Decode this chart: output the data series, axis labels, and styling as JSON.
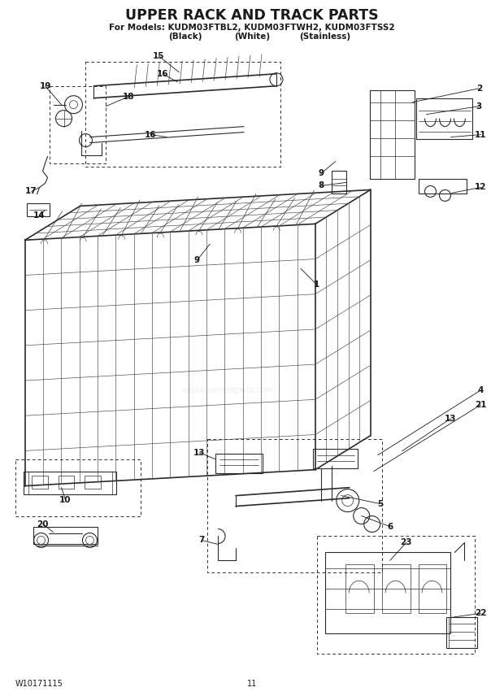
{
  "title": "UPPER RACK AND TRACK PARTS",
  "subtitle_line1": "For Models: KUDM03FTBL2, KUDM03FTWH2, KUDM03FTSS2",
  "subtitle_line2_black": "(Black)",
  "subtitle_line2_white": "(White)",
  "subtitle_line2_stainless": "(Stainless)",
  "footer_left": "W10171115",
  "footer_center": "11",
  "bg_color": "#ffffff",
  "line_color": "#2a2a2a"
}
